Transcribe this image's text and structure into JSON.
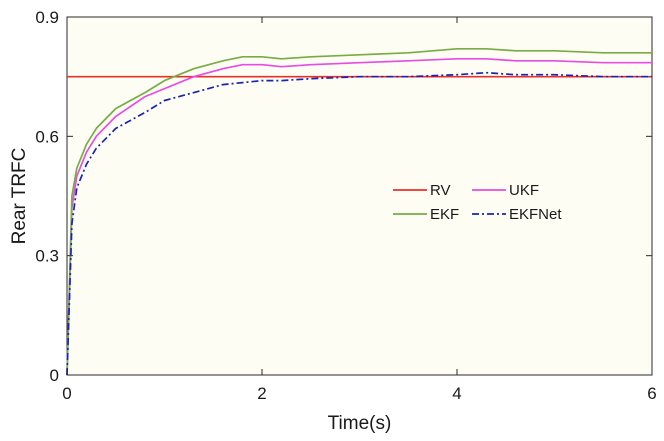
{
  "chart_data": {
    "type": "line",
    "title": "",
    "xlabel": "Time(s)",
    "ylabel": "Rear TRFC",
    "xlim": [
      0,
      6
    ],
    "ylim": [
      0,
      0.9
    ],
    "xticks": [
      0,
      2,
      4,
      6
    ],
    "xtick_labels": [
      "0",
      "2",
      "4",
      "6"
    ],
    "yticks": [
      0,
      0.3,
      0.6,
      0.9
    ],
    "ytick_labels": [
      "0",
      "0.3",
      "0.6",
      "0.9"
    ],
    "grid": false,
    "background": "#fdfdf3",
    "legend": {
      "position": "center-right",
      "columns": 2
    },
    "series": [
      {
        "name": "RV",
        "color": "#e8302a",
        "style": "solid",
        "x": [
          0,
          6
        ],
        "y": [
          0.75,
          0.75
        ]
      },
      {
        "name": "UKF",
        "color": "#e64ce6",
        "style": "solid",
        "x": [
          0,
          0.05,
          0.1,
          0.2,
          0.3,
          0.5,
          0.8,
          1.0,
          1.3,
          1.6,
          1.8,
          2.0,
          2.2,
          2.5,
          3.0,
          3.5,
          4.0,
          4.3,
          4.6,
          5.0,
          5.5,
          6.0
        ],
        "y": [
          0,
          0.42,
          0.5,
          0.56,
          0.6,
          0.65,
          0.7,
          0.72,
          0.75,
          0.77,
          0.78,
          0.78,
          0.775,
          0.78,
          0.785,
          0.79,
          0.795,
          0.795,
          0.79,
          0.79,
          0.785,
          0.785
        ]
      },
      {
        "name": "EKF",
        "color": "#78ac46",
        "style": "solid",
        "x": [
          0,
          0.05,
          0.1,
          0.2,
          0.3,
          0.5,
          0.8,
          1.0,
          1.3,
          1.6,
          1.8,
          2.0,
          2.2,
          2.5,
          3.0,
          3.5,
          4.0,
          4.3,
          4.6,
          5.0,
          5.5,
          6.0
        ],
        "y": [
          0,
          0.45,
          0.52,
          0.58,
          0.62,
          0.67,
          0.71,
          0.74,
          0.77,
          0.79,
          0.8,
          0.8,
          0.795,
          0.8,
          0.805,
          0.81,
          0.82,
          0.82,
          0.815,
          0.815,
          0.81,
          0.81
        ]
      },
      {
        "name": "EKFNet",
        "color": "#1a23b8",
        "style": "dashdot",
        "x": [
          0,
          0.05,
          0.1,
          0.2,
          0.3,
          0.5,
          0.8,
          1.0,
          1.3,
          1.6,
          1.8,
          2.0,
          2.2,
          2.5,
          3.0,
          3.5,
          4.0,
          4.3,
          4.6,
          5.0,
          5.5,
          6.0
        ],
        "y": [
          0,
          0.38,
          0.47,
          0.53,
          0.57,
          0.62,
          0.66,
          0.69,
          0.71,
          0.73,
          0.735,
          0.74,
          0.74,
          0.745,
          0.75,
          0.75,
          0.755,
          0.76,
          0.755,
          0.755,
          0.75,
          0.75
        ]
      }
    ]
  }
}
